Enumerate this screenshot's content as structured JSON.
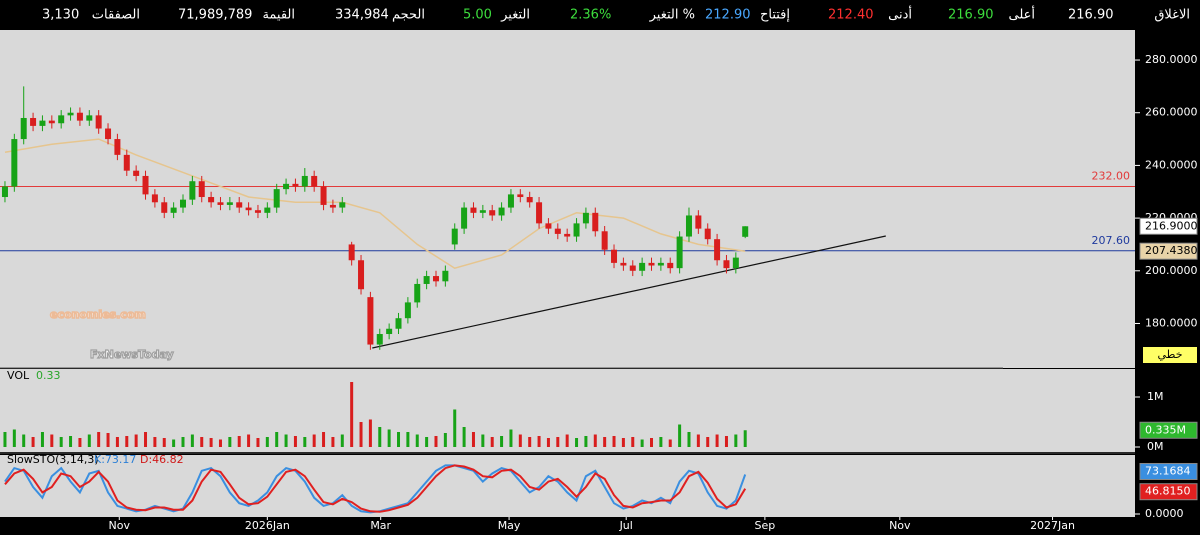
{
  "header": {
    "items": [
      {
        "label": "الاغلاق",
        "value": "216.90",
        "color": "#ffffff"
      },
      {
        "label": "أعلى",
        "value": "216.90",
        "color": "#3ddc3d"
      },
      {
        "label": "أدنى",
        "value": "212.40",
        "color": "#ff3030"
      },
      {
        "label": "إفتتاح",
        "value": "212.90",
        "color": "#4aa8ff"
      },
      {
        "label": "التغير %",
        "value": "2.36%",
        "color": "#3ddc3d"
      },
      {
        "label": "التغير",
        "value": "5.00",
        "color": "#3ddc3d"
      },
      {
        "label": "الحجم",
        "value": "334,984",
        "color": "#ffffff"
      },
      {
        "label": "القيمة",
        "value": "71,989,789",
        "color": "#ffffff"
      },
      {
        "label": "الصفقات",
        "value": "3,130",
        "color": "#ffffff"
      }
    ]
  },
  "watermark": [
    "economies.com",
    "FxNewsToday"
  ],
  "chart_data": {
    "type": "candlestick",
    "xlim": [
      -0.53,
      120.6
    ],
    "xticks": [
      {
        "value": 12.2,
        "label": "Nov"
      },
      {
        "value": 28.0,
        "label": "2026Jan"
      },
      {
        "value": 40.1,
        "label": "Mar"
      },
      {
        "value": 53.8,
        "label": "May"
      },
      {
        "value": 66.3,
        "label": "Jul"
      },
      {
        "value": 81.1,
        "label": "Sep"
      },
      {
        "value": 95.5,
        "label": "Nov"
      },
      {
        "value": 111.8,
        "label": "2027Jan"
      }
    ],
    "ylim": [
      163.1,
      291.4
    ],
    "yticks": [
      {
        "value": 180,
        "label": "180.0000"
      },
      {
        "value": 200,
        "label": "200.0000"
      },
      {
        "value": 220,
        "label": "220.0000"
      },
      {
        "value": 240,
        "label": "240.0000"
      },
      {
        "value": 260,
        "label": "260.0000"
      },
      {
        "value": 280,
        "label": "280.0000"
      }
    ],
    "scale_label": "خطي",
    "up_color": "#17a317",
    "down_color": "#d91e1e",
    "open": [
      228,
      232,
      250,
      258,
      255,
      257,
      256,
      259,
      260,
      257,
      259,
      254,
      250,
      244,
      238,
      236,
      229,
      226,
      222,
      224,
      227,
      234,
      228,
      226,
      225,
      226,
      224,
      223,
      222,
      224,
      231,
      233,
      232,
      236,
      232,
      225,
      224,
      210,
      204,
      190,
      172,
      176,
      178,
      182,
      188,
      195,
      198,
      196,
      210,
      216,
      224,
      222,
      223,
      221,
      224,
      229,
      228,
      226,
      218,
      216,
      214,
      213,
      218,
      222,
      215,
      208,
      203,
      202,
      200,
      203,
      202,
      203,
      201,
      213,
      221,
      216,
      212,
      204,
      201,
      212.9
    ],
    "high": [
      234,
      252,
      270,
      260,
      259,
      259,
      261,
      262,
      262,
      261,
      261,
      256,
      252,
      246,
      240,
      238,
      231,
      228,
      226,
      229,
      236,
      236,
      230,
      228,
      228,
      228,
      226,
      225,
      226,
      233,
      235,
      235,
      239,
      238,
      234,
      227,
      228,
      211,
      206,
      192,
      178,
      180,
      184,
      190,
      197,
      200,
      200,
      202,
      218,
      226,
      226,
      225,
      225,
      226,
      231,
      231,
      230,
      228,
      220,
      218,
      216,
      220,
      224,
      224,
      217,
      210,
      205,
      204,
      205,
      205,
      205,
      205,
      215,
      224,
      223,
      218,
      214,
      206,
      207,
      216.9
    ],
    "low": [
      226,
      230,
      248,
      253,
      253,
      254,
      254,
      257,
      255,
      255,
      252,
      248,
      242,
      236,
      234,
      227,
      224,
      220,
      220,
      222,
      225,
      226,
      224,
      223,
      223,
      222,
      221,
      220,
      220,
      222,
      229,
      230,
      230,
      230,
      223,
      222,
      222,
      202,
      191,
      170,
      170,
      174,
      176,
      180,
      186,
      193,
      194,
      194,
      208,
      214,
      220,
      220,
      219,
      219,
      222,
      226,
      224,
      216,
      214,
      212,
      211,
      211,
      216,
      213,
      206,
      201,
      200,
      198,
      198,
      200,
      200,
      199,
      199,
      211,
      214,
      210,
      202,
      199,
      199,
      212.4
    ],
    "close": [
      232,
      250,
      258,
      255,
      257,
      256,
      259,
      260,
      257,
      259,
      254,
      250,
      244,
      238,
      236,
      229,
      226,
      222,
      224,
      227,
      234,
      228,
      226,
      225,
      226,
      224,
      223,
      222,
      224,
      231,
      233,
      232,
      236,
      232,
      225,
      224,
      226,
      204,
      193,
      172,
      176,
      178,
      182,
      188,
      195,
      198,
      196,
      200,
      216,
      224,
      222,
      223,
      221,
      224,
      229,
      228,
      226,
      218,
      216,
      214,
      213,
      218,
      222,
      215,
      208,
      203,
      202,
      200,
      203,
      202,
      203,
      201,
      213,
      221,
      216,
      212,
      204,
      201,
      205,
      216.9
    ],
    "last_label": "216.9000",
    "ma": {
      "color": "#e6c58e",
      "x": [
        0,
        5,
        10,
        14,
        20,
        26,
        31,
        36,
        40,
        44,
        48,
        53,
        57,
        61,
        66,
        70,
        74,
        79
      ],
      "values": [
        245,
        248,
        250,
        244,
        236,
        228,
        226,
        226,
        222,
        210,
        201,
        206,
        216,
        222,
        220,
        214,
        210,
        207.438
      ],
      "last_label": "207.4380"
    },
    "hlines": [
      {
        "value": 232,
        "label": "232.00",
        "color": "#e23a3a"
      },
      {
        "value": 207.6,
        "label": "207.60",
        "color": "#1f3a9e"
      }
    ],
    "trendline": {
      "color": "#111111",
      "x": [
        39.2,
        94.0
      ],
      "values": [
        170.7,
        213.2
      ]
    },
    "volume": {
      "title": "VOL",
      "legend_value": "0.33",
      "ylim": [
        0,
        1.56
      ],
      "yticks": [
        {
          "value": 0,
          "label": "0M"
        },
        {
          "value": 1,
          "label": "1M"
        }
      ],
      "values": [
        0.3,
        0.35,
        0.25,
        0.2,
        0.3,
        0.25,
        0.2,
        0.22,
        0.18,
        0.25,
        0.3,
        0.28,
        0.2,
        0.22,
        0.25,
        0.3,
        0.2,
        0.18,
        0.15,
        0.2,
        0.25,
        0.2,
        0.18,
        0.15,
        0.2,
        0.22,
        0.25,
        0.18,
        0.2,
        0.3,
        0.25,
        0.22,
        0.2,
        0.25,
        0.3,
        0.2,
        0.25,
        1.3,
        0.5,
        0.55,
        0.4,
        0.35,
        0.3,
        0.3,
        0.25,
        0.2,
        0.22,
        0.28,
        0.75,
        0.4,
        0.3,
        0.25,
        0.2,
        0.22,
        0.35,
        0.25,
        0.2,
        0.22,
        0.18,
        0.2,
        0.25,
        0.18,
        0.22,
        0.25,
        0.2,
        0.22,
        0.18,
        0.2,
        0.15,
        0.18,
        0.2,
        0.15,
        0.45,
        0.3,
        0.25,
        0.2,
        0.25,
        0.22,
        0.25,
        0.335
      ],
      "last_label": "0.335M"
    },
    "stochastic": {
      "title": "SlowSTO(3,14,3)",
      "k_label": "K:73.17",
      "d_label": "D:46.82",
      "ylim": [
        0,
        100
      ],
      "yticks": [
        {
          "value": 0,
          "label": "0.0000"
        }
      ],
      "k": {
        "color": "#3a8fe0",
        "last_label": "73.1684",
        "values": [
          60,
          85,
          80,
          50,
          30,
          70,
          85,
          60,
          40,
          75,
          80,
          40,
          15,
          10,
          5,
          8,
          15,
          10,
          5,
          10,
          40,
          80,
          85,
          70,
          40,
          20,
          15,
          25,
          40,
          70,
          85,
          80,
          60,
          30,
          15,
          20,
          35,
          15,
          5,
          3,
          5,
          10,
          15,
          20,
          40,
          60,
          80,
          90,
          90,
          85,
          80,
          60,
          75,
          85,
          80,
          60,
          40,
          50,
          70,
          60,
          40,
          25,
          70,
          80,
          50,
          20,
          10,
          15,
          25,
          20,
          30,
          20,
          60,
          80,
          75,
          40,
          15,
          10,
          25,
          73.1684
        ]
      },
      "d": {
        "color": "#e02020",
        "last_label": "46.8150",
        "values": [
          55,
          75,
          82,
          65,
          40,
          50,
          75,
          70,
          50,
          60,
          78,
          60,
          25,
          12,
          8,
          7,
          12,
          12,
          8,
          8,
          25,
          60,
          82,
          78,
          55,
          30,
          18,
          20,
          32,
          55,
          78,
          82,
          70,
          45,
          22,
          18,
          28,
          22,
          10,
          5,
          4,
          7,
          12,
          17,
          30,
          50,
          70,
          85,
          90,
          88,
          82,
          70,
          68,
          80,
          82,
          70,
          50,
          45,
          60,
          65,
          50,
          32,
          50,
          75,
          65,
          35,
          15,
          12,
          20,
          22,
          25,
          25,
          40,
          70,
          78,
          58,
          28,
          12,
          18,
          46.815
        ]
      }
    }
  }
}
